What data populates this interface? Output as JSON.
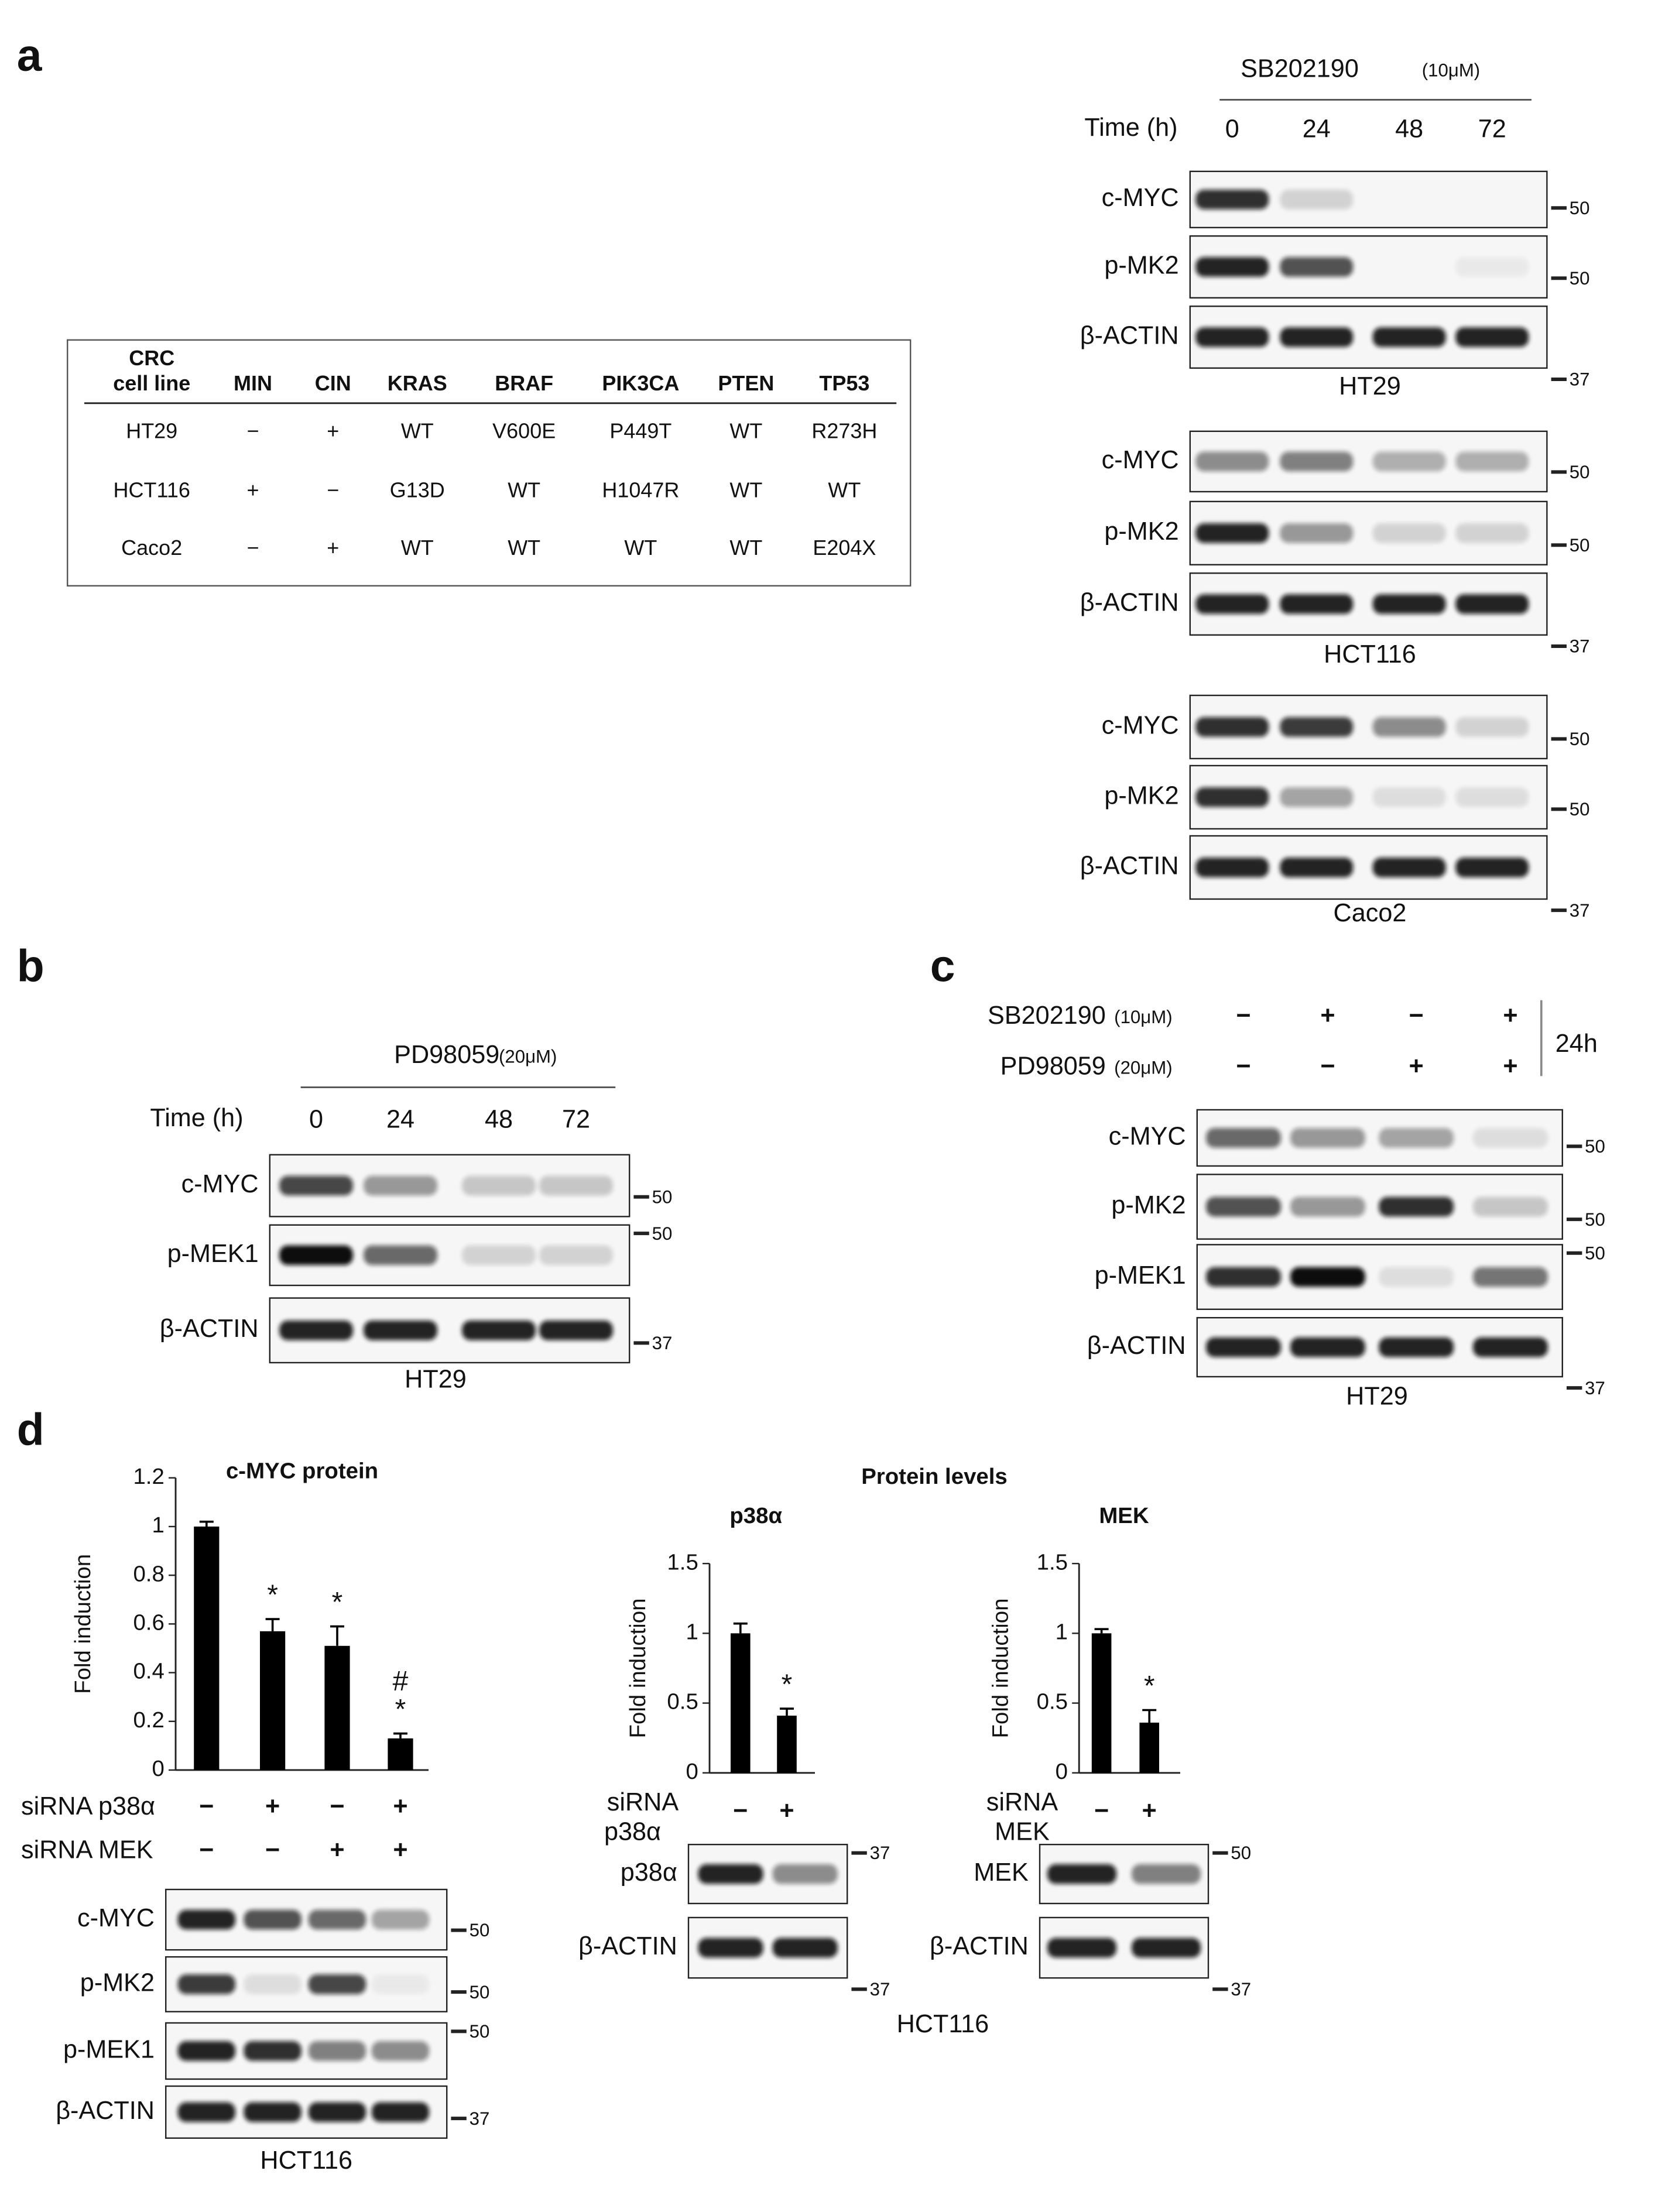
{
  "panel_labels": [
    "a",
    "b",
    "c",
    "d"
  ],
  "table": {
    "header": [
      [
        "CRC",
        "cell line"
      ],
      "MIN",
      "CIN",
      "KRAS",
      "BRAF",
      "PIK3CA",
      "PTEN",
      "TP53"
    ],
    "rows": [
      [
        "HT29",
        "−",
        "+",
        "WT",
        "V600E",
        "P449T",
        "WT",
        "R273H"
      ],
      [
        "HCT116",
        "+",
        "−",
        "G13D",
        "WT",
        "H1047R",
        "WT",
        "WT"
      ],
      [
        "Caco2",
        "−",
        "+",
        "WT",
        "WT",
        "WT",
        "WT",
        "E204X"
      ]
    ]
  },
  "panels": {
    "a": {
      "treatment": "SB202190",
      "concentration": "(10μM)",
      "time_label": "Time (h)",
      "times": [
        "0",
        "24",
        "48",
        "72"
      ],
      "blots": [
        {
          "cell_line": "HT29",
          "rows": [
            {
              "protein": "c-MYC",
              "marker": "50"
            },
            {
              "protein": "p-MK2",
              "marker": "50"
            },
            {
              "protein": "β-ACTIN",
              "marker": "37"
            }
          ]
        },
        {
          "cell_line": "HCT116",
          "rows": [
            {
              "protein": "c-MYC",
              "marker": "50"
            },
            {
              "protein": "p-MK2",
              "marker": "50"
            },
            {
              "protein": "β-ACTIN",
              "marker": "37"
            }
          ]
        },
        {
          "cell_line": "Caco2",
          "rows": [
            {
              "protein": "c-MYC",
              "marker": "50"
            },
            {
              "protein": "p-MK2",
              "marker": "50"
            },
            {
              "protein": "β-ACTIN",
              "marker": "37"
            }
          ]
        }
      ]
    },
    "b": {
      "treatment": "PD98059",
      "concentration": "(20μM)",
      "time_label": "Time (h)",
      "times": [
        "0",
        "24",
        "48",
        "72"
      ],
      "blot": {
        "cell_line": "HT29",
        "rows": [
          {
            "protein": "c-MYC",
            "marker": "50"
          },
          {
            "protein": "p-MEK1",
            "marker": "50"
          },
          {
            "protein": "β-ACTIN",
            "marker": "37"
          }
        ]
      }
    },
    "c": {
      "treatments": [
        {
          "name": "SB202190",
          "concentration": "(10μM)",
          "signs": [
            "−",
            "+",
            "−",
            "+"
          ]
        },
        {
          "name": "PD98059",
          "concentration": "(20μM)",
          "signs": [
            "−",
            "−",
            "+",
            "+"
          ]
        }
      ],
      "duration": "24h",
      "blot": {
        "cell_line": "HT29",
        "rows": [
          {
            "protein": "c-MYC",
            "marker": "50"
          },
          {
            "protein": "p-MK2",
            "marker": "50"
          },
          {
            "protein": "p-MEK1",
            "marker": "50"
          },
          {
            "protein": "β-ACTIN",
            "marker": "37"
          }
        ]
      }
    },
    "d": {
      "header": "Protein levels",
      "left_blot": {
        "cell_line": "HCT116",
        "rows": [
          {
            "protein": "c-MYC",
            "marker": "50"
          },
          {
            "protein": "p-MK2",
            "marker": "50"
          },
          {
            "protein": "p-MEK1",
            "marker": "50"
          },
          {
            "protein": "β-ACTIN",
            "marker": "37"
          }
        ]
      },
      "p38_blot": {
        "rows": [
          {
            "protein": "p38α",
            "marker": "37"
          },
          {
            "protein": "β-ACTIN",
            "marker": "37"
          }
        ]
      },
      "mek_blot": {
        "rows": [
          {
            "protein": "MEK",
            "marker": "50"
          },
          {
            "protein": "β-ACTIN",
            "marker": "37"
          }
        ]
      },
      "cell_line": "HCT116"
    }
  },
  "chart_data": [
    {
      "type": "bar",
      "title": "c-MYC protein",
      "y_label": "Fold induction",
      "ylim": [
        0,
        1.2
      ],
      "yticks": [
        0,
        0.2,
        0.4,
        0.6,
        0.8,
        1,
        1.2
      ],
      "values": [
        1.0,
        0.57,
        0.51,
        0.13
      ],
      "errors": [
        0.02,
        0.05,
        0.08,
        0.02
      ],
      "annotations": [
        null,
        [
          "*"
        ],
        [
          "*"
        ],
        [
          "#",
          "*"
        ]
      ],
      "color": "#000000",
      "conditions": [
        {
          "name": "siRNA p38α",
          "signs": [
            "−",
            "+",
            "−",
            "+"
          ]
        },
        {
          "name": "siRNA MEK",
          "signs": [
            "−",
            "−",
            "+",
            "+"
          ]
        }
      ]
    },
    {
      "type": "bar",
      "title": "p38α",
      "y_label": "Fold induction",
      "ylim": [
        0,
        1.5
      ],
      "yticks": [
        0,
        0.5,
        1,
        1.5
      ],
      "values": [
        1.0,
        0.41
      ],
      "errors": [
        0.07,
        0.05
      ],
      "annotations": [
        null,
        [
          "*"
        ]
      ],
      "color": "#000000",
      "conditions": [
        {
          "name": [
            "siRNA",
            "p38α"
          ],
          "signs": [
            "−",
            "+"
          ]
        }
      ]
    },
    {
      "type": "bar",
      "title": "MEK",
      "y_label": "Fold induction",
      "ylim": [
        0,
        1.5
      ],
      "yticks": [
        0,
        0.5,
        1,
        1.5
      ],
      "values": [
        1.0,
        0.36
      ],
      "errors": [
        0.03,
        0.09
      ],
      "annotations": [
        null,
        [
          "*"
        ]
      ],
      "color": "#000000",
      "conditions": [
        {
          "name": [
            "siRNA",
            "MEK"
          ],
          "signs": [
            "−",
            "+"
          ]
        }
      ]
    }
  ]
}
